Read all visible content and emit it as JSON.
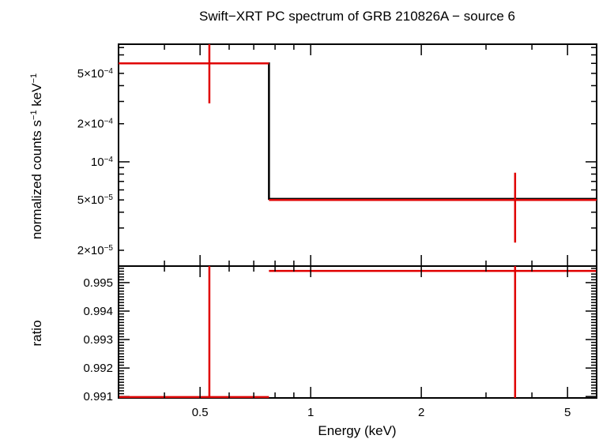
{
  "chart_data": {
    "type": "line",
    "title": "Swift−XRT PC spectrum of GRB 210826A − source 6",
    "xlabel": "Energy (keV)",
    "x_scale": "log",
    "xlim": [
      0.3,
      6.0
    ],
    "x_ticks": [
      {
        "value": 0.5,
        "label": "0.5"
      },
      {
        "value": 1,
        "label": "1"
      },
      {
        "value": 2,
        "label": "2"
      },
      {
        "value": 5,
        "label": "5"
      }
    ],
    "top_panel": {
      "ylabel_pre": "normalized counts s",
      "ylabel_mid": " keV",
      "ylabel_sup": "−1",
      "y_scale": "log",
      "ylim": [
        1.5e-05,
        0.00085
      ],
      "y_ticks": [
        {
          "value": 0.0005,
          "mant": "5×10",
          "exp": "−4"
        },
        {
          "value": 0.0002,
          "mant": "2×10",
          "exp": "−4"
        },
        {
          "value": 0.0001,
          "mant": "10",
          "exp": "−4"
        },
        {
          "value": 5e-05,
          "mant": "5×10",
          "exp": "−5"
        },
        {
          "value": 2e-05,
          "mant": "2×10",
          "exp": "−5"
        }
      ],
      "data": [
        {
          "x": 0.53,
          "xlo": 0.3,
          "xhi": 0.77,
          "y": 0.0006,
          "ylo": 0.00029,
          "yhi": 0.00085
        },
        {
          "x": 3.6,
          "xlo": 0.77,
          "xhi": 6.0,
          "y": 5e-05,
          "ylo": 2.3e-05,
          "yhi": 8.2e-05
        }
      ],
      "model": [
        {
          "xlo": 0.3,
          "xhi": 0.77,
          "y": 0.0006
        },
        {
          "xlo": 0.77,
          "xhi": 6.0,
          "y": 5.1e-05
        }
      ]
    },
    "bottom_panel": {
      "ylabel": "ratio",
      "y_scale": "linear",
      "ylim": [
        0.99095,
        0.99558
      ],
      "y_ticks": [
        {
          "value": 0.995,
          "label": "0.995"
        },
        {
          "value": 0.994,
          "label": "0.994"
        },
        {
          "value": 0.993,
          "label": "0.993"
        },
        {
          "value": 0.992,
          "label": "0.992"
        },
        {
          "value": 0.991,
          "label": "0.991"
        }
      ],
      "data": [
        {
          "x": 0.53,
          "xlo": 0.3,
          "xhi": 0.77,
          "y": 0.99098,
          "ylo": 0.9908,
          "yhi": 0.9958
        },
        {
          "x": 3.6,
          "xlo": 0.77,
          "xhi": 6.0,
          "y": 0.99541,
          "ylo": 0.9908,
          "yhi": 0.9958
        }
      ]
    },
    "colors": {
      "data": "#e00000",
      "model": "#000000",
      "frame": "#000000"
    }
  }
}
